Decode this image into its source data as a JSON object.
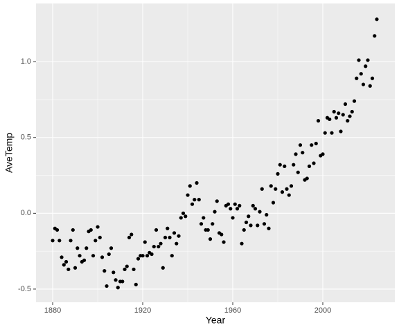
{
  "chart_data": {
    "type": "scatter",
    "x_label": "Year",
    "y_label": "AveTemp",
    "x": [
      1880,
      1881,
      1882,
      1883,
      1884,
      1885,
      1886,
      1887,
      1888,
      1889,
      1890,
      1891,
      1892,
      1893,
      1894,
      1895,
      1896,
      1897,
      1898,
      1899,
      1900,
      1901,
      1902,
      1903,
      1904,
      1905,
      1906,
      1907,
      1908,
      1909,
      1910,
      1911,
      1912,
      1913,
      1914,
      1915,
      1916,
      1917,
      1918,
      1919,
      1920,
      1921,
      1922,
      1923,
      1924,
      1925,
      1926,
      1927,
      1928,
      1929,
      1930,
      1931,
      1932,
      1933,
      1934,
      1935,
      1936,
      1937,
      1938,
      1939,
      1940,
      1941,
      1942,
      1943,
      1944,
      1945,
      1946,
      1947,
      1948,
      1949,
      1950,
      1951,
      1952,
      1953,
      1954,
      1955,
      1956,
      1957,
      1958,
      1959,
      1960,
      1961,
      1962,
      1963,
      1964,
      1965,
      1966,
      1967,
      1968,
      1969,
      1970,
      1971,
      1972,
      1973,
      1974,
      1975,
      1976,
      1977,
      1978,
      1979,
      1980,
      1981,
      1982,
      1983,
      1984,
      1985,
      1986,
      1987,
      1988,
      1989,
      1990,
      1991,
      1992,
      1993,
      1994,
      1995,
      1996,
      1997,
      1998,
      1999,
      2000,
      2001,
      2002,
      2003,
      2004,
      2005,
      2006,
      2007,
      2008,
      2009,
      2010,
      2011,
      2012,
      2013,
      2014,
      2015,
      2016,
      2017,
      2018,
      2019,
      2020,
      2021,
      2022,
      2023,
      2024
    ],
    "values": [
      -0.18,
      -0.1,
      -0.11,
      -0.18,
      -0.29,
      -0.34,
      -0.32,
      -0.37,
      -0.18,
      -0.11,
      -0.36,
      -0.23,
      -0.28,
      -0.32,
      -0.31,
      -0.23,
      -0.12,
      -0.11,
      -0.28,
      -0.18,
      -0.09,
      -0.16,
      -0.29,
      -0.38,
      -0.48,
      -0.27,
      -0.23,
      -0.39,
      -0.44,
      -0.49,
      -0.45,
      -0.45,
      -0.37,
      -0.35,
      -0.16,
      -0.14,
      -0.37,
      -0.47,
      -0.3,
      -0.28,
      -0.28,
      -0.19,
      -0.28,
      -0.26,
      -0.27,
      -0.22,
      -0.11,
      -0.22,
      -0.2,
      -0.36,
      -0.16,
      -0.1,
      -0.16,
      -0.28,
      -0.13,
      -0.2,
      -0.15,
      -0.03,
      0.0,
      -0.02,
      0.12,
      0.18,
      0.06,
      0.09,
      0.2,
      0.09,
      -0.07,
      -0.03,
      -0.11,
      -0.11,
      -0.17,
      -0.07,
      0.01,
      0.08,
      -0.13,
      -0.14,
      -0.19,
      0.05,
      0.06,
      0.03,
      -0.03,
      0.06,
      0.03,
      0.05,
      -0.2,
      -0.11,
      -0.06,
      -0.02,
      -0.08,
      0.05,
      0.03,
      -0.08,
      0.01,
      0.16,
      -0.07,
      -0.01,
      -0.1,
      0.18,
      0.07,
      0.16,
      0.26,
      0.32,
      0.14,
      0.31,
      0.16,
      0.12,
      0.18,
      0.32,
      0.39,
      0.27,
      0.45,
      0.4,
      0.22,
      0.23,
      0.31,
      0.45,
      0.33,
      0.46,
      0.61,
      0.38,
      0.39,
      0.53,
      0.63,
      0.62,
      0.53,
      0.67,
      0.63,
      0.66,
      0.54,
      0.65,
      0.72,
      0.61,
      0.64,
      0.67,
      0.74,
      0.89,
      1.01,
      0.92,
      0.85,
      0.97,
      1.01,
      0.84,
      0.89,
      1.17,
      1.28
    ],
    "color": "#000000",
    "xlim": [
      1872.6,
      2032.0
    ],
    "ylim": [
      -0.587,
      1.384
    ],
    "xticks": [
      1880,
      1920,
      1960,
      2000
    ],
    "yticks": [
      -0.5,
      {
        "value": 0,
        "label": "0.0"
      },
      0.5,
      {
        "value": 1,
        "label": "1.0"
      }
    ],
    "grid": true
  }
}
